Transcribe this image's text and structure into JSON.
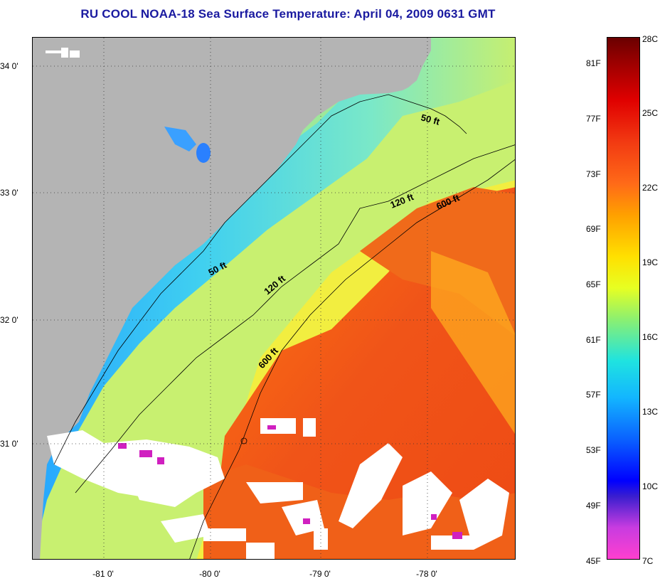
{
  "title": "RU COOL  NOAA-18  Sea Surface Temperature:  April 04, 2009 0631 GMT",
  "map": {
    "latitude_labels": [
      "34 0'",
      "33 0'",
      "32 0'",
      "31 0'"
    ],
    "longitude_labels": [
      "-81 0'",
      "-80 0'",
      "-79 0'",
      "-78 0'"
    ],
    "contour_labels": [
      "50 ft",
      "50 ft",
      "120 ft",
      "120 ft",
      "600 ft",
      "600 ft"
    ],
    "colors": {
      "land": "#b4b4b4",
      "shelf_cool": "#33bbff",
      "shelf_mid": "#66e8e8",
      "midshelf_warm": "#d8ee60",
      "gulf_stream": "#f05a18",
      "cloud": "#ffffff"
    }
  },
  "colorbar": {
    "fahrenheit_labels": [
      "81F",
      "77F",
      "73F",
      "69F",
      "65F",
      "61F",
      "57F",
      "53F",
      "49F",
      "45F"
    ],
    "celsius_labels": [
      "28C",
      "25C",
      "22C",
      "19C",
      "16C",
      "13C",
      "10C",
      "7C"
    ]
  }
}
